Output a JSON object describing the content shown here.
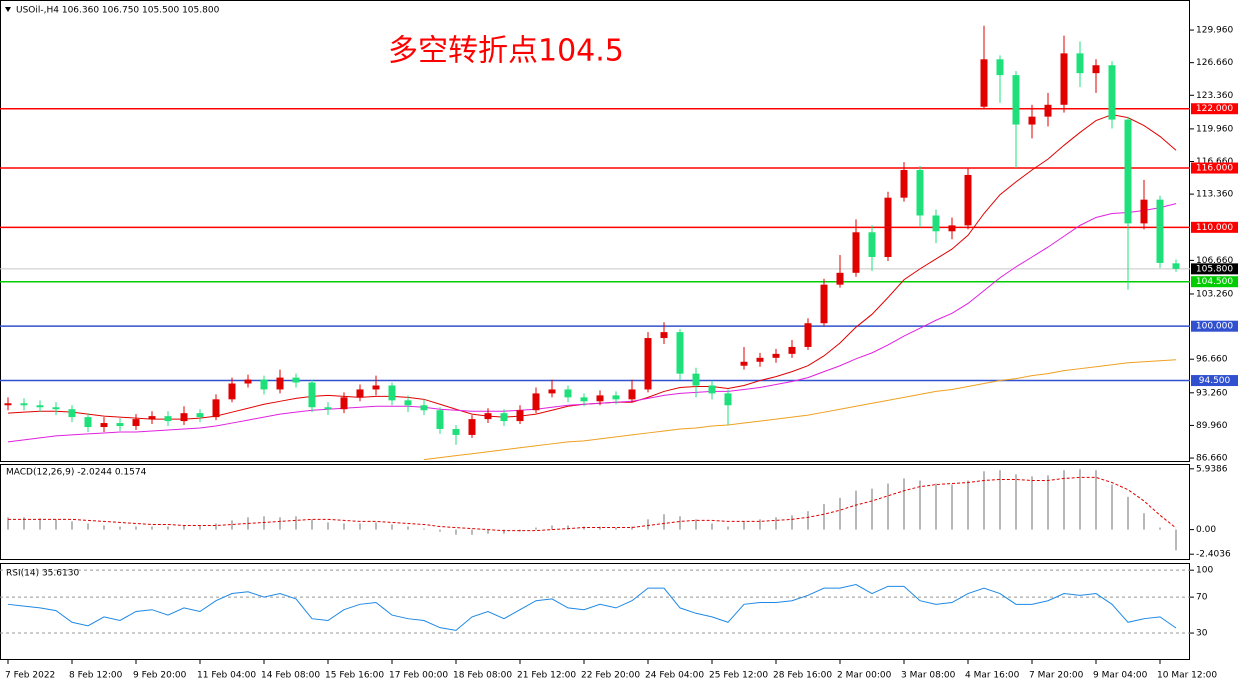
{
  "chart_data": [
    {
      "type": "candlestick",
      "title": "USOil-,H4 106.360 106.750 105.500 105.800",
      "annotation": "多空转折点104.5",
      "categories": [
        "7 Feb 2022",
        null,
        null,
        null,
        "8 Feb 12:00",
        null,
        null,
        null,
        "9 Feb 20:00",
        null,
        null,
        null,
        "11 Feb 04:00",
        null,
        null,
        null,
        "14 Feb 08:00",
        null,
        null,
        null,
        "15 Feb 16:00",
        null,
        null,
        null,
        "17 Feb 00:00",
        null,
        null,
        null,
        "18 Feb 08:00",
        null,
        null,
        null,
        "21 Feb 12:00",
        null,
        null,
        null,
        "22 Feb 20:00",
        null,
        null,
        null,
        "24 Feb 04:00",
        null,
        null,
        null,
        "25 Feb 12:00",
        null,
        null,
        null,
        "28 Feb 16:00",
        null,
        null,
        null,
        "2 Mar 00:00",
        null,
        null,
        null,
        "3 Mar 08:00",
        null,
        null,
        null,
        "4 Mar 16:00",
        null,
        null,
        null,
        "7 Mar 20:00",
        null,
        null,
        null,
        "9 Mar 04:00",
        null,
        null,
        null,
        "10 Mar 12:00",
        null
      ],
      "open": [
        92.0,
        92.2,
        92.0,
        91.8,
        91.6,
        90.8,
        89.8,
        90.2,
        89.9,
        90.6,
        90.9,
        90.4,
        91.2,
        90.8,
        92.6,
        94.2,
        94.6,
        93.6,
        94.8,
        94.3,
        91.8,
        91.6,
        92.8,
        93.6,
        94.0,
        92.5,
        92.0,
        91.5,
        89.6,
        89.0,
        90.6,
        91.2,
        90.4,
        91.5,
        93.2,
        93.6,
        92.8,
        92.4,
        93.0,
        92.6,
        93.6,
        98.8,
        99.4,
        95.2,
        94.0,
        93.2,
        96.0,
        96.4,
        96.8,
        97.2,
        97.9,
        100.3,
        104.2,
        105.4,
        109.5,
        107.0,
        113.0,
        115.8,
        111.2,
        109.6,
        110.2,
        122.2,
        127.0,
        125.4,
        120.4,
        121.2,
        122.4,
        127.6,
        125.6,
        126.4,
        120.9,
        110.4,
        112.8,
        106.36
      ],
      "high": [
        92.8,
        92.7,
        92.5,
        92.3,
        92.0,
        91.2,
        90.8,
        90.7,
        91.1,
        91.4,
        91.4,
        91.9,
        91.6,
        93.1,
        94.8,
        95.1,
        95.0,
        95.6,
        95.2,
        94.6,
        92.3,
        93.3,
        94.1,
        95.0,
        94.3,
        93.0,
        92.6,
        91.8,
        90.0,
        91.0,
        91.7,
        91.6,
        92.0,
        93.8,
        94.6,
        94.0,
        93.2,
        93.5,
        93.4,
        94.6,
        99.4,
        100.4,
        99.7,
        95.8,
        94.5,
        93.6,
        97.9,
        97.3,
        97.7,
        98.6,
        100.8,
        104.8,
        107.2,
        110.8,
        110.2,
        113.6,
        116.6,
        116.2,
        111.8,
        111.0,
        116.0,
        130.4,
        127.4,
        125.8,
        122.4,
        123.6,
        129.4,
        128.8,
        127.0,
        126.8,
        121.2,
        114.8,
        113.2,
        106.75
      ],
      "low": [
        91.5,
        91.5,
        91.3,
        91.0,
        90.3,
        89.3,
        89.3,
        89.4,
        89.5,
        90.1,
        89.9,
        90.0,
        90.3,
        90.5,
        92.3,
        93.8,
        93.1,
        93.2,
        93.8,
        91.3,
        91.0,
        91.2,
        92.4,
        93.0,
        92.0,
        91.3,
        91.0,
        89.1,
        88.0,
        88.7,
        90.2,
        89.9,
        90.1,
        91.2,
        92.8,
        92.3,
        91.9,
        92.0,
        92.1,
        92.3,
        93.3,
        98.2,
        94.6,
        92.8,
        92.6,
        90.0,
        95.6,
        95.9,
        96.3,
        96.8,
        97.6,
        100.0,
        103.9,
        105.0,
        105.6,
        106.6,
        112.6,
        110.0,
        108.4,
        108.8,
        109.8,
        122.0,
        122.6,
        116.0,
        119.0,
        120.2,
        121.6,
        124.2,
        123.6,
        120.0,
        103.7,
        109.8,
        105.9,
        105.5
      ],
      "close": [
        92.2,
        92.0,
        91.8,
        91.6,
        90.8,
        89.8,
        90.2,
        89.9,
        90.6,
        90.9,
        90.4,
        91.2,
        90.8,
        92.6,
        94.2,
        94.6,
        93.6,
        94.8,
        94.3,
        91.8,
        91.6,
        92.8,
        93.6,
        94.0,
        92.5,
        92.0,
        91.5,
        89.6,
        89.0,
        90.6,
        91.2,
        90.4,
        91.5,
        93.2,
        93.6,
        92.8,
        92.4,
        93.0,
        92.6,
        93.6,
        98.8,
        99.4,
        95.2,
        94.0,
        93.2,
        92.0,
        96.4,
        96.8,
        97.2,
        97.9,
        100.3,
        104.2,
        105.4,
        109.5,
        107.0,
        113.0,
        115.8,
        111.2,
        109.6,
        110.2,
        115.3,
        127.0,
        125.4,
        120.4,
        121.2,
        122.4,
        127.6,
        125.6,
        126.4,
        120.9,
        110.4,
        112.8,
        106.4,
        105.8
      ],
      "up_color": "#e00000",
      "down_color": "#1ee07a",
      "lines": [
        {
          "color": "#e00000",
          "values": [
            91.2,
            91.3,
            91.4,
            91.4,
            91.3,
            91.1,
            90.9,
            90.8,
            90.7,
            90.6,
            90.6,
            90.6,
            90.7,
            90.9,
            91.3,
            91.7,
            92.1,
            92.4,
            92.7,
            92.9,
            93.0,
            92.9,
            92.8,
            92.9,
            92.9,
            92.8,
            92.6,
            92.1,
            91.6,
            91.1,
            90.9,
            90.8,
            90.9,
            91.1,
            91.5,
            91.9,
            92.1,
            92.2,
            92.3,
            92.3,
            92.8,
            93.4,
            93.8,
            93.9,
            93.9,
            93.7,
            94.0,
            94.5,
            94.9,
            95.4,
            96.0,
            97.0,
            98.3,
            99.9,
            101.2,
            102.9,
            104.7,
            105.8,
            106.8,
            107.8,
            109.2,
            111.4,
            113.3,
            114.6,
            115.8,
            116.9,
            118.3,
            119.6,
            120.8,
            121.4,
            121.1,
            120.3,
            119.2,
            117.8
          ]
        },
        {
          "color": "#e020e0",
          "values": [
            88.3,
            88.5,
            88.7,
            88.9,
            89.0,
            89.1,
            89.2,
            89.3,
            89.3,
            89.4,
            89.5,
            89.6,
            89.7,
            89.9,
            90.2,
            90.5,
            90.8,
            91.1,
            91.3,
            91.5,
            91.6,
            91.7,
            91.8,
            91.9,
            91.9,
            91.9,
            91.8,
            91.6,
            91.5,
            91.4,
            91.4,
            91.4,
            91.5,
            91.6,
            91.8,
            92.0,
            92.1,
            92.2,
            92.3,
            92.4,
            92.7,
            93.0,
            93.2,
            93.3,
            93.4,
            93.4,
            93.6,
            93.8,
            94.1,
            94.4,
            94.8,
            95.4,
            96.0,
            96.7,
            97.3,
            98.1,
            99.0,
            99.8,
            100.6,
            101.3,
            102.3,
            103.6,
            104.9,
            106.0,
            107.0,
            108.0,
            109.1,
            110.2,
            111.0,
            111.4,
            111.5,
            111.7,
            112.0,
            112.4
          ]
        },
        {
          "color": "#f0a020",
          "values": [
            null,
            null,
            null,
            null,
            null,
            null,
            null,
            null,
            null,
            null,
            null,
            null,
            null,
            null,
            null,
            null,
            null,
            null,
            null,
            null,
            null,
            null,
            null,
            null,
            null,
            null,
            86.5,
            86.7,
            86.9,
            87.1,
            87.3,
            87.5,
            87.7,
            87.9,
            88.1,
            88.3,
            88.4,
            88.6,
            88.8,
            89.0,
            89.2,
            89.4,
            89.6,
            89.7,
            89.9,
            90.0,
            90.2,
            90.4,
            90.6,
            90.8,
            91.0,
            91.3,
            91.6,
            91.9,
            92.2,
            92.5,
            92.8,
            93.1,
            93.4,
            93.6,
            93.9,
            94.2,
            94.5,
            94.7,
            95.0,
            95.2,
            95.5,
            95.7,
            95.9,
            96.1,
            96.3,
            96.4,
            96.5,
            96.6
          ]
        }
      ],
      "levels": [
        {
          "value": 122,
          "label": "122.000",
          "color": "#ff0000"
        },
        {
          "value": 116,
          "label": "116.000",
          "color": "#ff0000"
        },
        {
          "value": 110,
          "label": "110.000",
          "color": "#ff0000"
        },
        {
          "value": 104.5,
          "label": "104.500",
          "color": "#00cc00"
        },
        {
          "value": 100,
          "label": "100.000",
          "color": "#3050d0"
        },
        {
          "value": 94.5,
          "label": "94.500",
          "color": "#3050d0"
        }
      ],
      "last_price": {
        "value": 105.8,
        "label": "105.800",
        "color": "#c8c8c8"
      },
      "ylim": [
        86.26,
        133.0
      ],
      "yticks": [
        {
          "value": 129.96,
          "label": "129.960"
        },
        {
          "value": 126.66,
          "label": "126.660"
        },
        {
          "value": 123.36,
          "label": "123.360"
        },
        {
          "value": 119.96,
          "label": "119.960"
        },
        {
          "value": 116.66,
          "label": "116.660"
        },
        {
          "value": 113.36,
          "label": "113.360"
        },
        {
          "value": 106.66,
          "label": "106.660"
        },
        {
          "value": 103.26,
          "label": "103.260"
        },
        {
          "value": 96.66,
          "label": "96.660"
        },
        {
          "value": 93.26,
          "label": "93.260"
        },
        {
          "value": 89.96,
          "label": "89.960"
        },
        {
          "value": 86.66,
          "label": "86.660"
        }
      ]
    },
    {
      "type": "macd",
      "title": "MACD(12,26,9) -2.0244 0.1574",
      "histogram": [
        1.2,
        1.2,
        1.1,
        1.0,
        0.8,
        0.6,
        0.4,
        0.3,
        0.3,
        0.3,
        0.3,
        0.4,
        0.4,
        0.6,
        0.9,
        1.2,
        1.3,
        1.2,
        1.3,
        1.0,
        0.7,
        0.6,
        0.6,
        0.7,
        0.5,
        0.3,
        0.1,
        -0.2,
        -0.5,
        -0.5,
        -0.4,
        -0.4,
        -0.2,
        0.2,
        0.4,
        0.4,
        0.3,
        0.3,
        0.2,
        0.3,
        1.0,
        1.5,
        1.3,
        1.0,
        0.6,
        0.3,
        0.8,
        1.0,
        1.2,
        1.4,
        1.8,
        2.5,
        3.1,
        3.8,
        4.0,
        4.5,
        5.0,
        4.8,
        4.5,
        4.4,
        4.8,
        5.7,
        5.8,
        5.4,
        5.2,
        5.3,
        5.8,
        5.9,
        5.8,
        4.4,
        3.2,
        1.6,
        0.2,
        -2.0244
      ],
      "signal": [
        1.0,
        1.0,
        1.0,
        1.0,
        1.0,
        0.9,
        0.8,
        0.7,
        0.6,
        0.5,
        0.5,
        0.4,
        0.4,
        0.4,
        0.5,
        0.6,
        0.7,
        0.8,
        0.9,
        1.0,
        1.0,
        0.9,
        0.8,
        0.8,
        0.7,
        0.6,
        0.5,
        0.3,
        0.2,
        0.1,
        0.0,
        -0.1,
        -0.1,
        -0.1,
        0.0,
        0.1,
        0.2,
        0.2,
        0.2,
        0.2,
        0.4,
        0.6,
        0.8,
        0.9,
        0.9,
        0.8,
        0.8,
        0.8,
        0.9,
        1.0,
        1.2,
        1.5,
        1.9,
        2.4,
        2.8,
        3.3,
        3.8,
        4.2,
        4.4,
        4.5,
        4.6,
        4.8,
        4.9,
        4.9,
        4.8,
        4.8,
        5.0,
        5.1,
        5.1,
        4.6,
        3.9,
        2.8,
        1.4,
        0.1574
      ],
      "histogram_color": "#b8b8b8",
      "signal_color": "#e00000",
      "ylim": [
        -2.97,
        6.41
      ],
      "yticks": [
        5.9386,
        {
          "value": 0,
          "label": "0.00"
        },
        -2.4036
      ]
    },
    {
      "type": "line",
      "title": "RSI(14) 35.6130",
      "values": [
        62,
        60,
        58,
        55,
        42,
        38,
        48,
        44,
        54,
        56,
        50,
        58,
        54,
        66,
        74,
        76,
        70,
        74,
        68,
        46,
        44,
        56,
        62,
        64,
        50,
        46,
        44,
        36,
        33,
        48,
        54,
        46,
        56,
        66,
        68,
        58,
        56,
        62,
        58,
        66,
        80,
        80,
        58,
        52,
        48,
        42,
        62,
        64,
        64,
        66,
        72,
        80,
        80,
        84,
        74,
        82,
        82,
        66,
        62,
        64,
        74,
        80,
        74,
        62,
        62,
        66,
        74,
        72,
        74,
        62,
        42,
        46,
        48,
        35.613
      ],
      "color": "#1e88e5",
      "ylim": [
        0,
        108
      ],
      "yticks": [
        100,
        70,
        30
      ],
      "grid": true
    }
  ]
}
